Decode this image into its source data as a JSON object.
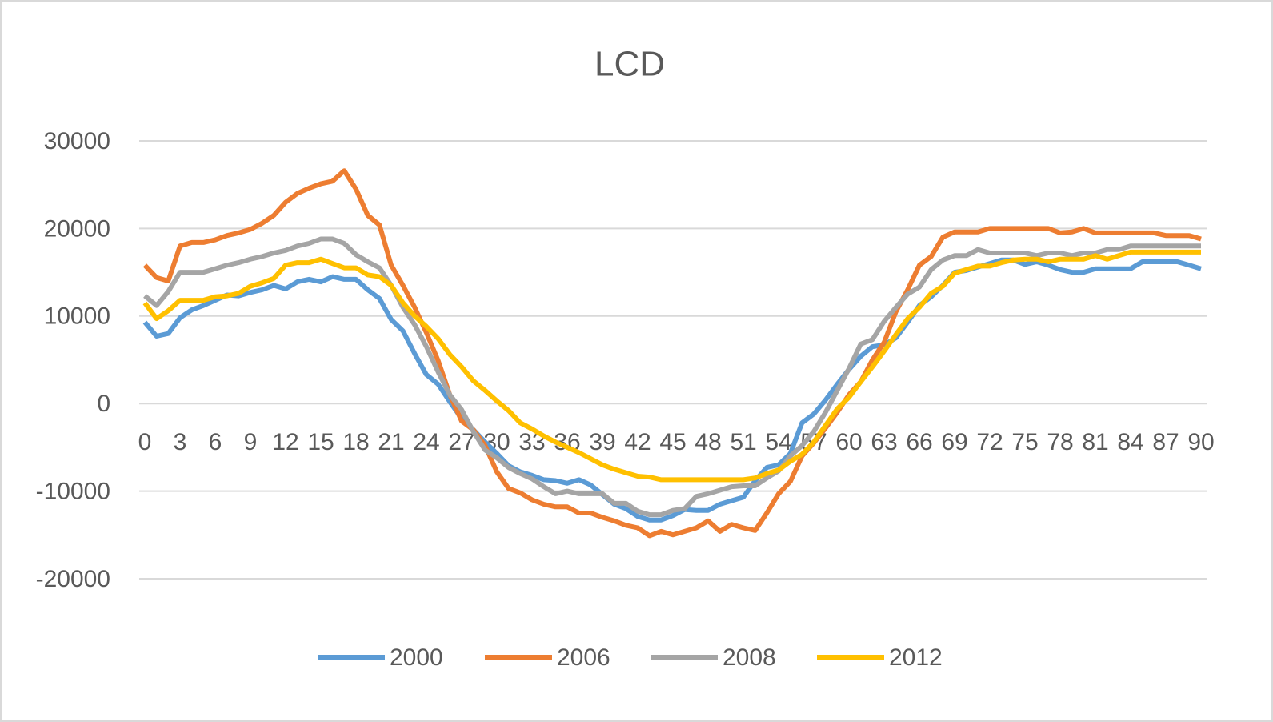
{
  "chart_data": {
    "type": "line",
    "title": "LCD",
    "categories": [
      0,
      null,
      null,
      3,
      null,
      null,
      6,
      null,
      null,
      9,
      null,
      null,
      12,
      null,
      null,
      15,
      null,
      null,
      18,
      null,
      null,
      21,
      null,
      null,
      24,
      null,
      null,
      27,
      null,
      null,
      30,
      null,
      null,
      33,
      null,
      null,
      36,
      null,
      null,
      39,
      null,
      null,
      42,
      null,
      null,
      45,
      null,
      null,
      48,
      null,
      null,
      51,
      null,
      null,
      54,
      null,
      null,
      57,
      null,
      null,
      60,
      null,
      null,
      63,
      null,
      null,
      66,
      null,
      null,
      69,
      null,
      null,
      72,
      null,
      null,
      75,
      null,
      null,
      78,
      null,
      null,
      81,
      null,
      null,
      84,
      null,
      null,
      87,
      null,
      null,
      90
    ],
    "ylim": [
      -20000,
      30000
    ],
    "yticks": [
      -20000,
      -10000,
      0,
      10000,
      20000,
      30000
    ],
    "grid": true,
    "legend": "bottom",
    "series": [
      {
        "name": "2000",
        "color": "#5b9bd5",
        "values": [
          9300,
          7700,
          8000,
          9800,
          10700,
          11200,
          11800,
          12400,
          12300,
          12700,
          13000,
          13500,
          13100,
          13900,
          14200,
          13900,
          14500,
          14200,
          14200,
          13000,
          12000,
          9600,
          8300,
          5700,
          3300,
          2200,
          200,
          -1700,
          -3000,
          -4400,
          -5700,
          -7100,
          -7800,
          -8200,
          -8700,
          -8800,
          -9100,
          -8700,
          -9300,
          -10400,
          -11500,
          -12000,
          -12900,
          -13300,
          -13300,
          -12800,
          -12100,
          -12200,
          -12200,
          -11500,
          -11100,
          -10700,
          -8800,
          -7300,
          -7000,
          -5700,
          -2200,
          -1200,
          400,
          2200,
          3900,
          5400,
          6500,
          6700,
          7500,
          9300,
          11200,
          12200,
          13500,
          15000,
          15200,
          15600,
          16000,
          16400,
          16400,
          15900,
          16200,
          15800,
          15300,
          15000,
          15000,
          15400,
          15400,
          15400,
          15400,
          16200,
          16200,
          16200,
          16200,
          15800,
          15400
        ]
      },
      {
        "name": "2006",
        "color": "#ed7d31",
        "values": [
          15800,
          14400,
          14000,
          18000,
          18400,
          18400,
          18700,
          19200,
          19500,
          19900,
          20600,
          21500,
          23000,
          24000,
          24600,
          25100,
          25400,
          26600,
          24500,
          21500,
          20400,
          15800,
          13500,
          11000,
          8100,
          4900,
          1000,
          -2000,
          -3000,
          -4800,
          -7800,
          -9700,
          -10200,
          -11000,
          -11500,
          -11800,
          -11800,
          -12500,
          -12500,
          -13000,
          -13400,
          -13900,
          -14200,
          -15100,
          -14600,
          -15000,
          -14600,
          -14200,
          -13400,
          -14600,
          -13800,
          -14200,
          -14500,
          -12500,
          -10300,
          -8900,
          -6000,
          -4500,
          -2800,
          -1000,
          1000,
          2500,
          5000,
          7000,
          10500,
          13000,
          15800,
          16800,
          19000,
          19600,
          19600,
          19600,
          20000,
          20000,
          20000,
          20000,
          20000,
          20000,
          19500,
          19600,
          20000,
          19500,
          19500,
          19500,
          19500,
          19500,
          19500,
          19200,
          19200,
          19200,
          18800
        ]
      },
      {
        "name": "2008",
        "color": "#a5a5a5",
        "values": [
          12300,
          11200,
          12800,
          15000,
          15000,
          15000,
          15400,
          15800,
          16100,
          16500,
          16800,
          17200,
          17500,
          18000,
          18300,
          18800,
          18800,
          18300,
          17000,
          16200,
          15500,
          13500,
          11000,
          9000,
          6500,
          3600,
          1000,
          -700,
          -3200,
          -5300,
          -6200,
          -7300,
          -8000,
          -8600,
          -9500,
          -10300,
          -10000,
          -10300,
          -10300,
          -10300,
          -11400,
          -11400,
          -12300,
          -12700,
          -12700,
          -12200,
          -12000,
          -10600,
          -10300,
          -9900,
          -9500,
          -9400,
          -9400,
          -8500,
          -7700,
          -6000,
          -4800,
          -3200,
          -1000,
          1500,
          4000,
          6800,
          7300,
          9400,
          11000,
          12500,
          13300,
          15300,
          16400,
          16900,
          16900,
          17600,
          17200,
          17200,
          17200,
          17200,
          16900,
          17200,
          17200,
          16900,
          17200,
          17200,
          17600,
          17600,
          18000,
          18000,
          18000,
          18000,
          18000,
          18000,
          18000
        ]
      },
      {
        "name": "2012",
        "color": "#ffc000",
        "values": [
          11500,
          9700,
          10600,
          11800,
          11800,
          11800,
          12200,
          12300,
          12600,
          13400,
          13800,
          14300,
          15800,
          16100,
          16100,
          16500,
          16000,
          15500,
          15500,
          14700,
          14500,
          13500,
          11500,
          10000,
          8800,
          7400,
          5600,
          4200,
          2600,
          1500,
          300,
          -800,
          -2200,
          -2900,
          -3700,
          -4400,
          -5000,
          -5600,
          -6300,
          -7000,
          -7500,
          -7900,
          -8300,
          -8400,
          -8700,
          -8700,
          -8700,
          -8700,
          -8700,
          -8700,
          -8700,
          -8700,
          -8500,
          -8000,
          -7600,
          -6600,
          -5800,
          -4400,
          -2500,
          -600,
          700,
          2500,
          4200,
          6000,
          7900,
          9700,
          11000,
          12600,
          13400,
          14900,
          15300,
          15700,
          15700,
          16100,
          16400,
          16500,
          16500,
          16200,
          16500,
          16500,
          16500,
          16900,
          16500,
          16900,
          17300,
          17300,
          17300,
          17300,
          17300,
          17300,
          17300
        ]
      }
    ]
  }
}
